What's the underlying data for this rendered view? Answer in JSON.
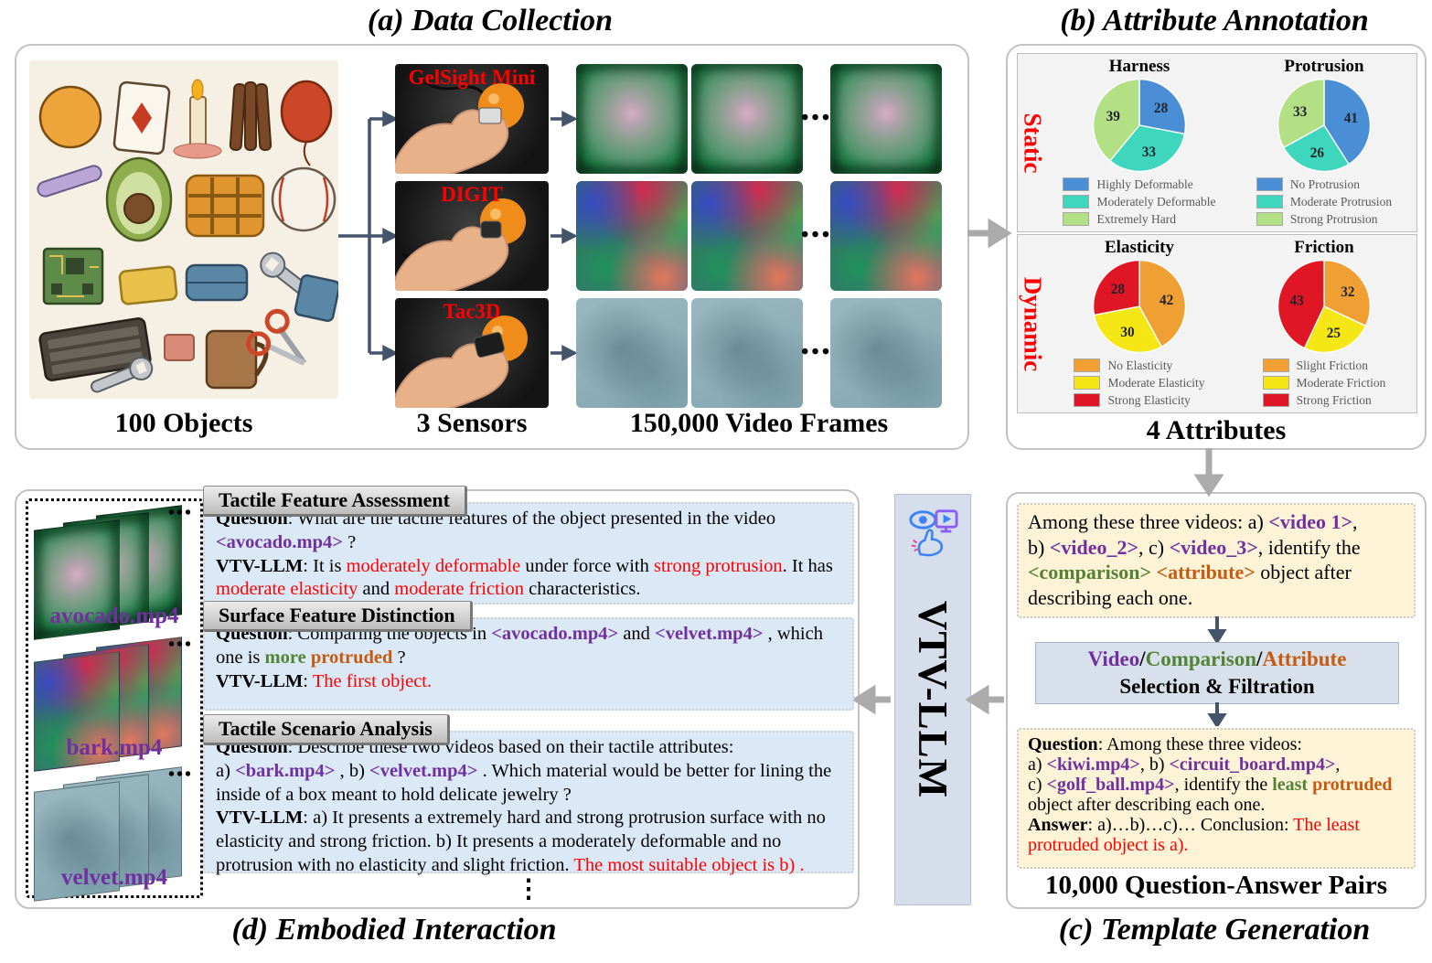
{
  "palette": {
    "purple": "#7030A0",
    "green": "#548235",
    "orange": "#C55A11",
    "red": "#FF0000"
  },
  "titles": {
    "a": "(a) Data Collection",
    "b": "(b) Attribute Annotation",
    "c": "(c) Template Generation",
    "d": "(d) Embodied Interaction"
  },
  "panel_a": {
    "captions": {
      "objects": "100 Objects",
      "sensors": "3 Sensors",
      "frames": "150,000 Video Frames"
    },
    "sensors": [
      "GelSight Mini",
      "DIGIT",
      "Tac3D"
    ],
    "frame_ellipsis": "•••"
  },
  "panel_b": {
    "static_label": "Static",
    "dynamic_label": "Dynamic",
    "caption": "4 Attributes"
  },
  "chart_data": [
    {
      "type": "pie",
      "title": "Harness",
      "values": [
        28,
        33,
        39
      ],
      "labels": [
        "Highly Deformable",
        "Moderately Deformable",
        "Extremely Hard"
      ],
      "colors": [
        "#4a8fd6",
        "#3ed6bd",
        "#b3e084"
      ],
      "legend_position": "bottom"
    },
    {
      "type": "pie",
      "title": "Protrusion",
      "values": [
        41,
        26,
        33
      ],
      "labels": [
        "No Protrusion",
        "Moderate Protrusion",
        "Strong Protrusion"
      ],
      "colors": [
        "#4a8fd6",
        "#3ed6bd",
        "#b3e084"
      ],
      "legend_position": "bottom"
    },
    {
      "type": "pie",
      "title": "Elasticity",
      "values": [
        42,
        30,
        28
      ],
      "labels": [
        "No Elasticity",
        "Moderate Elasticity",
        "Strong Elasticity"
      ],
      "colors": [
        "#f0a032",
        "#f5e616",
        "#e01624"
      ],
      "legend_position": "bottom"
    },
    {
      "type": "pie",
      "title": "Friction",
      "values": [
        32,
        25,
        43
      ],
      "labels": [
        "Slight Friction",
        "Moderate Friction",
        "Strong Friction"
      ],
      "colors": [
        "#f0a032",
        "#f5e616",
        "#e01624"
      ],
      "legend_position": "bottom"
    }
  ],
  "panel_c": {
    "box1": [
      {
        "t": "Among these three videos: a) "
      },
      {
        "t": "<video 1>",
        "c": "purple",
        "b": true
      },
      {
        "t": ","
      },
      {
        "br": true
      },
      {
        "t": "b) "
      },
      {
        "t": "<video_2>",
        "c": "purple",
        "b": true
      },
      {
        "t": ", c) "
      },
      {
        "t": "<video_3>",
        "c": "purple",
        "b": true
      },
      {
        "t": ", identify the"
      },
      {
        "br": true
      },
      {
        "t": "<comparison>",
        "c": "green",
        "b": true
      },
      {
        "t": " "
      },
      {
        "t": "<attribute>",
        "c": "orange",
        "b": true
      },
      {
        "t": " object after"
      },
      {
        "br": true
      },
      {
        "t": "describing each one."
      }
    ],
    "sel_line1": [
      {
        "t": "Video",
        "c": "purple",
        "b": true
      },
      {
        "t": "/",
        "b": true
      },
      {
        "t": "Comparison",
        "c": "green",
        "b": true
      },
      {
        "t": "/",
        "b": true
      },
      {
        "t": "Attribute",
        "c": "orange",
        "b": true
      }
    ],
    "sel_line2": [
      {
        "t": "Selection & Filtration",
        "b": true
      }
    ],
    "box2": [
      {
        "t": "Question",
        "b": true
      },
      {
        "t": ": Among these three videos:"
      },
      {
        "br": true
      },
      {
        "t": "a) "
      },
      {
        "t": "<kiwi.mp4>",
        "c": "purple",
        "b": true
      },
      {
        "t": ", b) "
      },
      {
        "t": "<circuit_board.mp4>",
        "c": "purple",
        "b": true
      },
      {
        "t": ","
      },
      {
        "br": true
      },
      {
        "t": "c) "
      },
      {
        "t": "<golf_ball.mp4>",
        "c": "purple",
        "b": true
      },
      {
        "t": ", identify the "
      },
      {
        "t": "least",
        "c": "green",
        "b": true
      },
      {
        "t": " "
      },
      {
        "t": "protruded",
        "c": "orange",
        "b": true
      },
      {
        "br": true
      },
      {
        "t": "object after describing each one."
      },
      {
        "br": true
      },
      {
        "t": "Answer",
        "b": true
      },
      {
        "t": ": a)…b)…c)… Conclusion: "
      },
      {
        "t": "The least protruded object is a).",
        "c": "red"
      }
    ],
    "caption": "10,000 Question-Answer Pairs"
  },
  "panel_d": {
    "videos": [
      {
        "name": "avocado.mp4",
        "style": "gel"
      },
      {
        "name": "bark.mp4",
        "style": "digit"
      },
      {
        "name": "velvet.mp4",
        "style": "tac"
      }
    ],
    "stack_ellipsis": "•••",
    "ellipsis_v": "⋮",
    "dialogs": [
      {
        "header": "Tactile Feature Assessment",
        "body": [
          {
            "t": "Question",
            "b": true
          },
          {
            "t": ": What are the tactile features of the object presented in the video"
          },
          {
            "br": true
          },
          {
            "t": "<avocado.mp4>",
            "c": "purple",
            "b": true
          },
          {
            "t": " ?"
          },
          {
            "br": true
          },
          {
            "t": "VTV-LLM",
            "b": true
          },
          {
            "t": ": It is "
          },
          {
            "t": "moderately deformable",
            "c": "red"
          },
          {
            "t": " under force with "
          },
          {
            "t": "strong protrusion",
            "c": "red"
          },
          {
            "t": ". It has "
          },
          {
            "t": "moderate elasticity",
            "c": "red"
          },
          {
            "t": " and "
          },
          {
            "t": "moderate friction",
            "c": "red"
          },
          {
            "t": " characteristics."
          }
        ]
      },
      {
        "header": "Surface Feature Distinction",
        "body": [
          {
            "t": "Question",
            "b": true
          },
          {
            "t": ": Comparing the objects in "
          },
          {
            "t": "<avocado.mp4>",
            "c": "purple",
            "b": true
          },
          {
            "t": " and "
          },
          {
            "t": "<velvet.mp4>",
            "c": "purple",
            "b": true
          },
          {
            "t": " , which"
          },
          {
            "br": true
          },
          {
            "t": "one is "
          },
          {
            "t": "more",
            "c": "green",
            "b": true
          },
          {
            "t": " "
          },
          {
            "t": "protruded",
            "c": "orange",
            "b": true
          },
          {
            "t": " ?"
          },
          {
            "br": true
          },
          {
            "t": "VTV-LLM",
            "b": true
          },
          {
            "t": ": "
          },
          {
            "t": "The first object.",
            "c": "red"
          }
        ]
      },
      {
        "header": "Tactile Scenario Analysis",
        "body": [
          {
            "t": "Question",
            "b": true
          },
          {
            "t": ": Describe these two videos based on their tactile attributes:"
          },
          {
            "br": true
          },
          {
            "t": "a) "
          },
          {
            "t": "<bark.mp4>",
            "c": "purple",
            "b": true
          },
          {
            "t": " , b) "
          },
          {
            "t": "<velvet.mp4>",
            "c": "purple",
            "b": true
          },
          {
            "t": " . Which material would be better for lining the inside of a box meant to hold delicate jewelry ?"
          },
          {
            "br": true
          },
          {
            "t": "VTV-LLM",
            "b": true
          },
          {
            "t": ": a) It presents a extremely hard and strong protrusion surface with no elasticity and strong friction. b) It presents a moderately deformable and no protrusion with no elasticity and slight friction. "
          },
          {
            "t": "The most suitable object is b) .",
            "c": "red"
          }
        ]
      }
    ]
  },
  "vtv": {
    "label": "VTV-LLM"
  }
}
